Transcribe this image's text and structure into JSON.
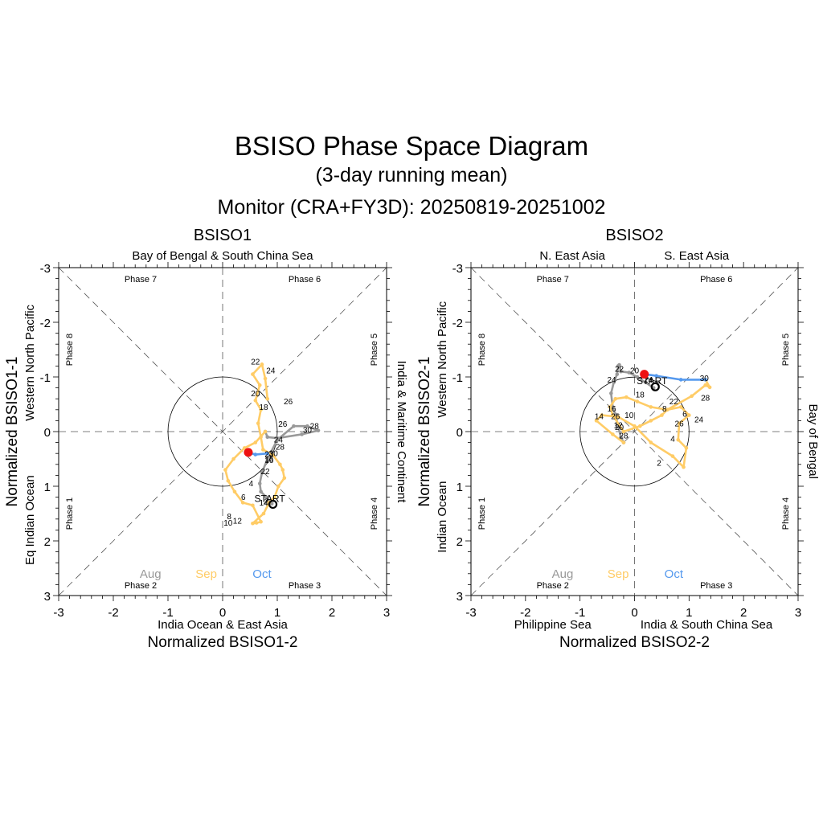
{
  "title": "BSISO Phase Space Diagram",
  "subtitle": "(3-day running mean)",
  "period": "Monitor (CRA+FY3D): 20250819-20251002",
  "colors": {
    "aug": "#999999",
    "sep": "#FFCC66",
    "oct": "#5599EE",
    "end": "#EE1111",
    "axis": "#000000",
    "guide": "#555555"
  },
  "chart_data": [
    {
      "type": "line",
      "title": "BSISO1",
      "xlabel": "Normalized BSISO1-2",
      "ylabel": "Normalized BSISO1-1",
      "xlim": [
        -3,
        3
      ],
      "ylim": [
        3,
        -3
      ],
      "y_inverted": true,
      "xticks": [
        "-3",
        "-2",
        "-1",
        "0",
        "1",
        "2",
        "3"
      ],
      "yticks": [
        "-3",
        "-2",
        "-1",
        "0",
        "1",
        "2",
        "3"
      ],
      "region_top": [
        "Bay of Bengal & South China Sea"
      ],
      "region_bottom": [
        "India Ocean & East Asia"
      ],
      "region_left": [
        "Eq Indian Ocean",
        "Western North Pacific"
      ],
      "region_right": [
        "India & Maritime Continent"
      ],
      "phases": [
        "Phase 1",
        "Phase 2",
        "Phase 3",
        "Phase 4",
        "Phase 5",
        "Phase 6",
        "Phase 7",
        "Phase 8"
      ],
      "month_legend": [
        "Aug",
        "Sep",
        "Oct"
      ],
      "start_label": "START",
      "series": [
        {
          "name": "Aug",
          "x": [
            0.9,
            0.8,
            0.7,
            0.68,
            0.72,
            0.82,
            1.0,
            1.3,
            1.55,
            1.75,
            1.45,
            1.0,
            0.82,
            0.78
          ],
          "y": [
            1.32,
            1.2,
            1.1,
            0.95,
            0.75,
            0.5,
            0.15,
            -0.1,
            -0.1,
            -0.02,
            0.05,
            0.12,
            0.1,
            0.0
          ]
        },
        {
          "name": "Sep",
          "x": [
            0.78,
            0.6,
            0.4,
            0.2,
            0.05,
            0.1,
            0.22,
            0.37,
            0.55,
            0.7,
            0.62,
            0.55,
            0.75,
            0.85,
            0.95,
            1.02,
            1.13,
            1.1,
            1.05,
            0.92,
            0.74,
            0.7,
            0.65,
            0.7,
            0.6,
            0.68,
            0.55,
            0.72,
            0.78,
            0.82
          ],
          "y": [
            0.0,
            0.2,
            0.3,
            0.5,
            0.7,
            0.9,
            1.1,
            1.3,
            1.35,
            1.65,
            1.67,
            1.68,
            1.5,
            1.3,
            1.2,
            1.0,
            0.85,
            0.7,
            0.6,
            0.43,
            0.33,
            0.1,
            -0.15,
            -0.4,
            -0.57,
            -0.85,
            -1.05,
            -1.23,
            -0.97,
            -0.6
          ]
        },
        {
          "name": "Oct",
          "x": [
            0.82,
            0.6,
            0.47
          ],
          "y": [
            0.4,
            0.42,
            0.38
          ]
        }
      ],
      "day_labels": [
        {
          "text": "2",
          "x": 0.8,
          "y": 1.28
        },
        {
          "text": "4",
          "x": 0.52,
          "y": 0.95
        },
        {
          "text": "6",
          "x": 0.38,
          "y": 1.2
        },
        {
          "text": "8",
          "x": 0.12,
          "y": 1.55
        },
        {
          "text": "10",
          "x": 0.1,
          "y": 1.67
        },
        {
          "text": "12",
          "x": 0.27,
          "y": 1.63
        },
        {
          "text": "14",
          "x": 0.75,
          "y": 1.3
        },
        {
          "text": "16",
          "x": 0.85,
          "y": 0.52
        },
        {
          "text": "18",
          "x": 0.75,
          "y": -0.45
        },
        {
          "text": "20",
          "x": 0.6,
          "y": -0.7
        },
        {
          "text": "22",
          "x": 0.6,
          "y": -1.28
        },
        {
          "text": "24",
          "x": 0.88,
          "y": -1.12
        },
        {
          "text": "26",
          "x": 1.2,
          "y": -0.55
        },
        {
          "text": "22",
          "x": 0.78,
          "y": 0.73
        },
        {
          "text": "24",
          "x": 1.02,
          "y": 0.15
        },
        {
          "text": "26",
          "x": 1.1,
          "y": -0.14
        },
        {
          "text": "28",
          "x": 1.05,
          "y": 0.28
        },
        {
          "text": "28",
          "x": 1.68,
          "y": -0.1
        },
        {
          "text": "30",
          "x": 1.55,
          "y": -0.03
        },
        {
          "text": "30",
          "x": 0.93,
          "y": 0.4
        },
        {
          "text": "23",
          "x": 0.85,
          "y": 0.41
        },
        {
          "text": "16",
          "x": 0.85,
          "y": 0.5
        }
      ],
      "start": {
        "x": 0.92,
        "y": 1.33
      },
      "end": {
        "x": 0.47,
        "y": 0.38
      }
    },
    {
      "type": "line",
      "title": "BSISO2",
      "xlabel": "Normalized BSISO2-2",
      "ylabel": "Normalized BSISO2-1",
      "xlim": [
        -3,
        3
      ],
      "ylim": [
        3,
        -3
      ],
      "y_inverted": true,
      "xticks": [
        "-3",
        "-2",
        "-1",
        "0",
        "1",
        "2",
        "3"
      ],
      "yticks": [
        "-3",
        "-2",
        "-1",
        "0",
        "1",
        "2",
        "3"
      ],
      "region_top": [
        "N. East Asia",
        "S. East Asia"
      ],
      "region_bottom": [
        "Philippine Sea",
        "India & South China Sea"
      ],
      "region_left": [
        "Indian Ocean",
        "Western North Pacific"
      ],
      "region_right": [
        "Bay of Bengal"
      ],
      "phases": [
        "Phase 1",
        "Phase 2",
        "Phase 3",
        "Phase 4",
        "Phase 5",
        "Phase 6",
        "Phase 7",
        "Phase 8"
      ],
      "month_legend": [
        "Aug",
        "Sep",
        "Oct"
      ],
      "start_label": "START",
      "series": [
        {
          "name": "Aug",
          "x": [
            0.35,
            0.2,
            0.05,
            -0.1,
            -0.25,
            -0.28,
            -0.3,
            -0.32,
            -0.38,
            -0.43,
            -0.4,
            -0.35,
            -0.3,
            -0.25,
            -0.2
          ],
          "y": [
            -0.8,
            -0.9,
            -1.0,
            -1.08,
            -1.1,
            -1.22,
            -1.2,
            -1.05,
            -0.9,
            -0.7,
            -0.45,
            -0.3,
            -0.1,
            0.1,
            0.2
          ]
        },
        {
          "name": "Sep",
          "x": [
            -0.2,
            -0.4,
            -0.7,
            -0.6,
            -0.3,
            0.0,
            0.3,
            0.7,
            0.9,
            0.95,
            0.8,
            0.82,
            1.0,
            0.85,
            0.6,
            0.5,
            0.3,
            0.1,
            -0.2,
            -0.4,
            -0.45,
            -0.35,
            -0.15,
            0.05,
            0.3,
            0.6,
            1.05,
            1.3,
            1.38,
            1.3
          ],
          "y": [
            0.2,
            0.05,
            -0.2,
            -0.3,
            -0.27,
            -0.1,
            0.2,
            0.45,
            0.65,
            0.3,
            0.15,
            -0.15,
            -0.3,
            -0.45,
            -0.4,
            -0.3,
            -0.2,
            -0.1,
            0.0,
            -0.3,
            -0.45,
            -0.6,
            -0.63,
            -0.55,
            -0.45,
            -0.4,
            -0.65,
            -0.85,
            -0.81,
            -0.95
          ]
        },
        {
          "name": "Oct",
          "x": [
            1.3,
            0.85,
            0.4,
            0.18
          ],
          "y": [
            -0.95,
            -0.95,
            -1.02,
            -1.05
          ]
        }
      ],
      "day_labels": [
        {
          "text": "2",
          "x": 0.45,
          "y": 0.57
        },
        {
          "text": "4",
          "x": 0.7,
          "y": 0.13
        },
        {
          "text": "6",
          "x": 0.92,
          "y": -0.32
        },
        {
          "text": "8",
          "x": 0.55,
          "y": -0.42
        },
        {
          "text": "10",
          "x": -0.1,
          "y": -0.3
        },
        {
          "text": "12",
          "x": -0.3,
          "y": -0.12
        },
        {
          "text": "14",
          "x": -0.65,
          "y": -0.28
        },
        {
          "text": "16",
          "x": -0.42,
          "y": -0.42
        },
        {
          "text": "18",
          "x": 0.1,
          "y": -0.68
        },
        {
          "text": "20",
          "x": 0.0,
          "y": -1.12
        },
        {
          "text": "22",
          "x": -0.28,
          "y": -1.15
        },
        {
          "text": "24",
          "x": -0.42,
          "y": -0.95
        },
        {
          "text": "26",
          "x": -0.35,
          "y": -0.28
        },
        {
          "text": "20",
          "x": -0.28,
          "y": -0.08
        },
        {
          "text": "28",
          "x": -0.2,
          "y": 0.07
        },
        {
          "text": "22",
          "x": 0.72,
          "y": -0.55
        },
        {
          "text": "24",
          "x": 1.18,
          "y": -0.22
        },
        {
          "text": "26",
          "x": 0.82,
          "y": -0.15
        },
        {
          "text": "28",
          "x": 1.3,
          "y": -0.62
        },
        {
          "text": "30",
          "x": 1.28,
          "y": -0.98
        },
        {
          "text": "24",
          "x": 0.25,
          "y": -0.95
        }
      ],
      "start": {
        "x": 0.38,
        "y": -0.82
      },
      "end": {
        "x": 0.18,
        "y": -1.05
      }
    }
  ]
}
